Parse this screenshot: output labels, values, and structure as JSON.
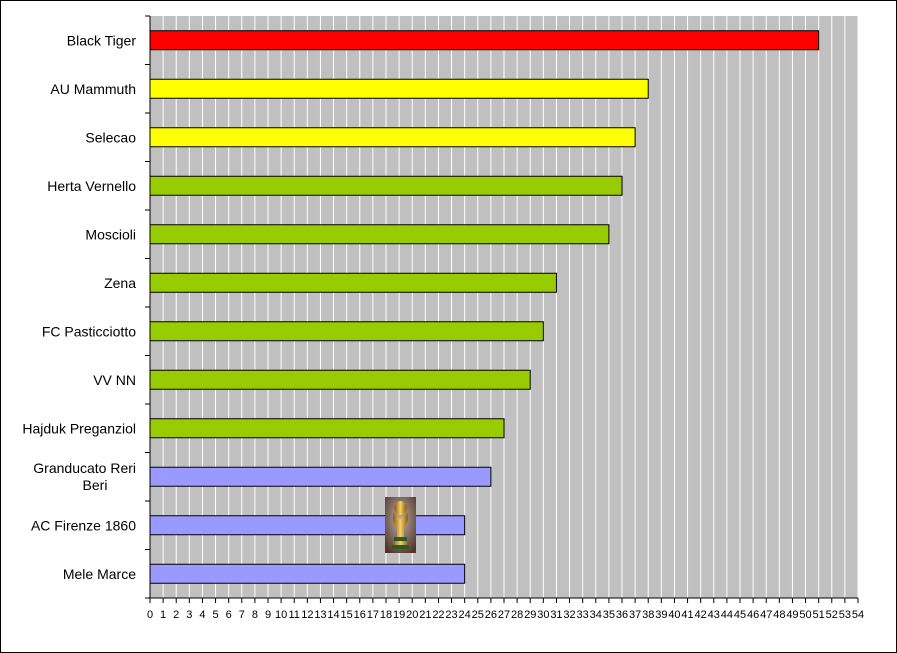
{
  "chart_data": {
    "type": "bar",
    "orientation": "horizontal",
    "categories": [
      "Black Tiger",
      "AU Mammuth",
      "Selecao",
      "Herta Vernello",
      "Moscioli",
      "Zena",
      "FC Pasticciotto",
      "VV NN",
      "Hajduk Preganziol",
      "Granducato Reri Beri",
      "AC Firenze 1860",
      "Mele Marce"
    ],
    "values": [
      51,
      38,
      37,
      36,
      35,
      31,
      30,
      29,
      27,
      26,
      24,
      24
    ],
    "bar_colors": [
      "#ff0000",
      "#ffff00",
      "#ffff00",
      "#99cc00",
      "#99cc00",
      "#99cc00",
      "#99cc00",
      "#99cc00",
      "#99cc00",
      "#9999ff",
      "#9999ff",
      "#9999ff"
    ],
    "xlim": [
      0,
      54
    ],
    "xticks": [
      0,
      1,
      2,
      3,
      4,
      5,
      6,
      7,
      8,
      9,
      10,
      11,
      12,
      13,
      14,
      15,
      16,
      17,
      18,
      19,
      20,
      21,
      22,
      23,
      24,
      25,
      26,
      27,
      28,
      29,
      30,
      31,
      32,
      33,
      34,
      35,
      36,
      37,
      38,
      39,
      40,
      41,
      42,
      43,
      44,
      45,
      46,
      47,
      48,
      49,
      50,
      51,
      52,
      53,
      54
    ],
    "grid": "vertical",
    "plot_background": "#c0c0c0",
    "title": "",
    "xlabel": "",
    "ylabel": "",
    "legend": "none",
    "annotations": [
      {
        "type": "image",
        "name": "world-cup-trophy",
        "near_category": "AC Firenze 1860"
      }
    ]
  }
}
